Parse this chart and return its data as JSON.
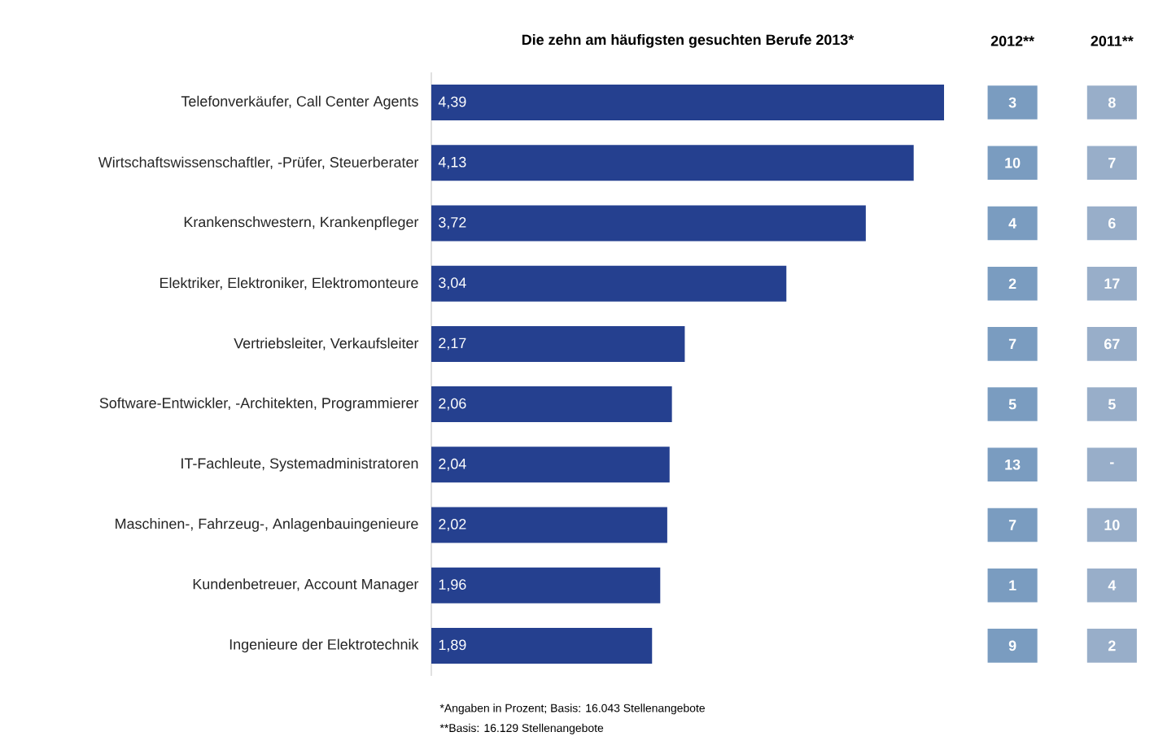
{
  "chart_data": [
    {
      "type": "bar",
      "orientation": "horizontal",
      "title": "Die zehn am häufigsten gesuchten Berufe 2013*",
      "categories": [
        "Telefonverkäufer, Call Center Agents",
        "Wirtschaftswissenschaftler, -Prüfer, Steuerberater",
        "Krankenschwestern, Krankenpfleger",
        "Elektriker, Elektroniker, Elektromonteure",
        "Vertriebsleiter, Verkaufsleiter",
        "Software-Entwickler, -Architekten, Programmierer",
        "IT-Fachleute, Systemadministratoren",
        "Maschinen-, Fahrzeug-, Anlagenbauingenieure",
        "Kundenbetreuer, Account Manager",
        "Ingenieure der Elektrotechnik"
      ],
      "values": [
        4.39,
        4.13,
        3.72,
        3.04,
        2.17,
        2.06,
        2.04,
        2.02,
        1.96,
        1.89
      ],
      "value_labels": [
        "4,39",
        "4,13",
        "3,72",
        "3,04",
        "2,17",
        "2,06",
        "2,04",
        "2,02",
        "1,96",
        "1,89"
      ],
      "color": "#25408f",
      "annotations": [
        "*Angaben in Prozent; Basis: 16.043 Stellenangebote",
        "**Basis: 16.129 Stellenangebote"
      ]
    },
    {
      "type": "other",
      "categories": [
        "2012**",
        "2011**"
      ],
      "cell_labels": [
        [
          "3",
          "8"
        ],
        [
          "10",
          "7"
        ],
        [
          "4",
          "6"
        ],
        [
          "2",
          "17"
        ],
        [
          "7",
          "67"
        ],
        [
          "5",
          "5"
        ],
        [
          "13",
          "-"
        ],
        [
          "7",
          "10"
        ],
        [
          "1",
          "4"
        ],
        [
          "9",
          "2"
        ]
      ],
      "colors": [
        "#7a9cc0",
        "#98aec9"
      ]
    }
  ]
}
